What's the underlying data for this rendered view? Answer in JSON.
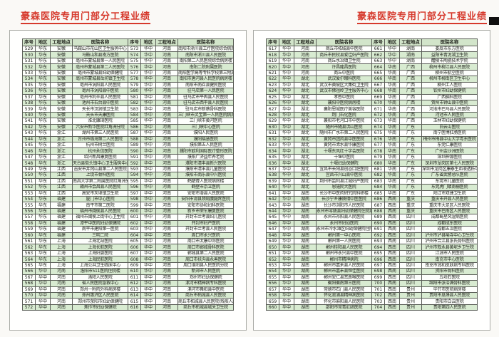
{
  "title": "豪森医院专用门部分工程业绩",
  "table_headers": [
    "序号",
    "地区",
    "工程地点",
    "医院名称",
    "序号",
    "地区",
    "工程地点",
    "医院名称"
  ],
  "pages": [
    {
      "rows": [
        [
          "529",
          "华东",
          "安徽",
          "马鞍山市花山区卫生服务中心",
          "573",
          "华中",
          "河南",
          "南阳市淅川县工疗医院综合病房楼"
        ],
        [
          "530",
          "华东",
          "安徽",
          "马鞍山和县南方医院",
          "574",
          "华中",
          "河南",
          "南阳市淅川县人民医院"
        ],
        [
          "531",
          "华东",
          "安徽",
          "亳州市蒙城县第一人民医院",
          "575",
          "华中",
          "河南",
          "南阳第二人民医院综合病房楼"
        ],
        [
          "532",
          "华东",
          "安徽",
          "亳州市蒙城县第二人民医院",
          "576",
          "华中",
          "河南",
          "南阳二院附属医院"
        ],
        [
          "533",
          "华东",
          "安徽",
          "亳州市蒙城县妇幼保健院",
          "577",
          "华中",
          "河南",
          "南阳医学高等专科学校第三附属医院"
        ],
        [
          "534",
          "华东",
          "安徽",
          "亳州市蒙城县岳坊镇卫生院",
          "578",
          "华中",
          "河南",
          "南阳市唐河县人民医院病房楼"
        ],
        [
          "535",
          "华东",
          "安徽",
          "亳州市涡阳县人民医院",
          "579",
          "华中",
          "河南",
          "南阳市南召县健民医院"
        ],
        [
          "536",
          "华东",
          "安徽",
          "亳州市涡阳县中医院",
          "580",
          "华中",
          "河南",
          "驻马店第一人民医院"
        ],
        [
          "537",
          "华东",
          "安徽",
          "亳州市利辛县人民医院",
          "581",
          "华中",
          "河南",
          "驻马店市平舆县人民医院"
        ],
        [
          "538",
          "华东",
          "安徽",
          "池州市石台县中医院",
          "582",
          "华中",
          "河南",
          "驻马店市西平县人民医院"
        ],
        [
          "539",
          "华东",
          "安徽",
          "天长市汊涧镇卫生院",
          "583",
          "华中",
          "河南",
          "驻马店市新蔡骨科医院"
        ],
        [
          "540",
          "华东",
          "安徽",
          "天长市天康医院",
          "584",
          "华中",
          "河南",
          "三门峡市灵宝第一人民医院病房楼"
        ],
        [
          "541",
          "华东",
          "安徽",
          "淮北康琦医院",
          "585",
          "华中",
          "河南",
          "三门峡市黄河医院"
        ],
        [
          "542",
          "华东",
          "安徽",
          "六安市新华医院红角洲分院",
          "586",
          "华中",
          "河南",
          "三门峡中心医院"
        ],
        [
          "543",
          "华东",
          "浙江",
          "湖州市第三人民医院",
          "587",
          "华中",
          "河南",
          "濮阳人民医院"
        ],
        [
          "544",
          "华东",
          "浙江",
          "台州市临海第二人民医院",
          "588",
          "华中",
          "河南",
          "濮阳福慧医院"
        ],
        [
          "545",
          "华东",
          "浙江",
          "杭州市树兰医院",
          "589",
          "华中",
          "河南",
          "濮阳第五人民医院"
        ],
        [
          "546",
          "华东",
          "浙江",
          "杭州永信医院",
          "590",
          "华中",
          "河南",
          "濮阳市欧利国际医疗整形医院"
        ],
        [
          "547",
          "华东",
          "浙江",
          "绍兴新昌康复医院",
          "591",
          "华中",
          "河南",
          "濮阳广济益年养老院"
        ],
        [
          "548",
          "华东",
          "浙江",
          "天台县街头镇中心卫生服务中心",
          "592",
          "华中",
          "河南",
          "濮阳市清丰县新兴医院"
        ],
        [
          "549",
          "华东",
          "江西",
          "吉安市井冈山县第二人民医院",
          "593",
          "华中",
          "河南",
          "濮阳市清丰县儿童医院"
        ],
        [
          "550",
          "华东",
          "江西",
          "上饶市骨科医院",
          "594",
          "华中",
          "河南",
          "濮阳市南乐县中兴医院"
        ],
        [
          "551",
          "华东",
          "江西",
          "南昌大学第二附属医院红角洲分院",
          "595",
          "华中",
          "河南",
          "鹤壁聋人医院病房楼"
        ],
        [
          "552",
          "华东",
          "江西",
          "赣州市会昌县人民医院",
          "596",
          "华中",
          "河南",
          "鹤壁市京立医院"
        ],
        [
          "553",
          "华东",
          "江西",
          "高安市灰埠镇卫生院",
          "597",
          "华中",
          "河南",
          "安阳市滑县人民医院"
        ],
        [
          "554",
          "华东",
          "福建",
          "厦门市中心医院",
          "598",
          "华中",
          "河南",
          "安阳市滑县颈肩腰腿疼医院"
        ],
        [
          "555",
          "华东",
          "福建",
          "南平市第二医院",
          "599",
          "华中",
          "河南",
          "安阳市协和妇科医院"
        ],
        [
          "556",
          "华东",
          "福建",
          "福州市闽侯县人民医院",
          "600",
          "华中",
          "河南",
          "新乡市荣军康复医院"
        ],
        [
          "557",
          "华东",
          "福建",
          "福州市闽侯上街中心卫生院",
          "601",
          "华中",
          "河南",
          "开封市兰考县妇儿医院"
        ],
        [
          "558",
          "华东",
          "福建",
          "漳平中医院妇幼保健院",
          "602",
          "华中",
          "河南",
          "开封市妇产医院"
        ],
        [
          "559",
          "华东",
          "福建",
          "南平市建阳第一医院",
          "603",
          "华中",
          "河南",
          "开封市兰考县人民医院"
        ],
        [
          "560",
          "华东",
          "福建",
          "三明二院",
          "604",
          "华中",
          "河南",
          "周口市永兴医院"
        ],
        [
          "561",
          "华东",
          "上海",
          "上海北站医院",
          "605",
          "华中",
          "河南",
          "周口市太康中郊医院"
        ],
        [
          "562",
          "华东",
          "上海",
          "上海长航医院",
          "606",
          "华中",
          "河南",
          "周口市郸城骨科医院"
        ],
        [
          "563",
          "华东",
          "上海",
          "上海妇婴医院",
          "607",
          "华中",
          "河南",
          "郸城县第二人民医院"
        ],
        [
          "564",
          "华东",
          "上海",
          "上海民航医院",
          "608",
          "华中",
          "河南",
          "周口市扶沟县永善医院"
        ],
        [
          "565",
          "华东",
          "上海",
          "上海公共卫生临床中心",
          "609",
          "华中",
          "河南",
          "周口淮阳县人民医院分院"
        ],
        [
          "566",
          "华中",
          "河南",
          "洛阳市511医院住院楼",
          "610",
          "华中",
          "河南",
          "新郑市人民医院"
        ],
        [
          "567",
          "华中",
          "河南",
          "洛阳人民医院",
          "611",
          "华中",
          "河南",
          "郑州市妇幼保健院"
        ],
        [
          "568",
          "华中",
          "河南",
          "省人民医院急救中心",
          "612",
          "华中",
          "河南",
          "漯河市精神病专科医院"
        ],
        [
          "569",
          "华中",
          "河南",
          "郑州一附院外科病房楼",
          "613",
          "华中",
          "河南",
          "漯河市舞阳县中医院"
        ],
        [
          "570",
          "华中",
          "河南",
          "郑州惠济区人民医院",
          "614",
          "华中",
          "河南",
          "商丘市柘城县人民医院"
        ],
        [
          "571",
          "华中",
          "河南",
          "郑州市荥阳市妇幼保健院",
          "615",
          "华中",
          "河南",
          "商丘市柘城县人民医院(残疾人康复中心)"
        ],
        [
          "572",
          "华中",
          "河南",
          "焦作市妇幼保健院",
          "616",
          "华中",
          "河南",
          "商丘市柘城县城关卫生院"
        ]
      ]
    },
    {
      "rows": [
        [
          "617",
          "华中",
          "河南",
          "商丘市柘城县中医院",
          "661",
          "华中",
          "湖南",
          "娄底市东方医院"
        ],
        [
          "618",
          "华中",
          "河南",
          "商丘市民权县爱佳妇产医院",
          "662",
          "华中",
          "湖南",
          "益阳市青泥湖卫生院"
        ],
        [
          "619",
          "华中",
          "河南",
          "商丘水冶镇卫生院",
          "663",
          "华中",
          "湖南",
          "醴陵市陶瓷技术学院"
        ],
        [
          "620",
          "华中",
          "河南",
          "许昌隆昌医院",
          "664",
          "华南",
          "广西",
          "柳州市柳江县人民医院"
        ],
        [
          "621",
          "华中",
          "河南",
          "商丘中医院",
          "665",
          "华南",
          "广西",
          "柳州市航空医院"
        ],
        [
          "622",
          "华中",
          "湖北",
          "武汉爱尔眼科医院",
          "666",
          "华南",
          "广西",
          "柳州市柳南区卫生中心"
        ],
        [
          "623",
          "华中",
          "湖北",
          "武汉市黄陂区大集街卫生院",
          "667",
          "华南",
          "广西",
          "柳州工人医院"
        ],
        [
          "624",
          "华中",
          "湖北",
          "武汉市佛祖岭卫生服务中心",
          "668",
          "华南",
          "广西",
          "钦州市妇幼保健院"
        ],
        [
          "625",
          "华中",
          "湖北",
          "孝感中医院",
          "669",
          "华南",
          "广西",
          "广西脑科医院"
        ],
        [
          "626",
          "华中",
          "湖北",
          "襄阳中医院病房楼",
          "670",
          "华南",
          "广西",
          "贺州市钟山县中医院"
        ],
        [
          "627",
          "华中",
          "湖北",
          "襄阳恩城医疗美容医院",
          "671",
          "华南",
          "广西",
          "河池市巴马县人民医院"
        ],
        [
          "628",
          "华中",
          "湖北",
          "荆门石化医院",
          "672",
          "华南",
          "广西",
          "河池市人民医院"
        ],
        [
          "629",
          "华中",
          "湖北",
          "襄阳市老河口市中医院",
          "673",
          "华南",
          "广西",
          "玉林市妇幼保健院"
        ],
        [
          "630",
          "华中",
          "湖北",
          "随州市随县洪山医院",
          "674",
          "华南",
          "广东",
          "白云山医院"
        ],
        [
          "631",
          "华中",
          "湖北",
          "随州市广水市第二人民医院",
          "675",
          "华南",
          "广东",
          "南宁医博肛肠医院"
        ],
        [
          "632",
          "华中",
          "湖北",
          "黄冈市团风县中医医院",
          "676",
          "华南",
          "广东",
          "梅州市梅县中山大学粤东医院"
        ],
        [
          "633",
          "华中",
          "湖北",
          "黄冈市浠水县华康医院",
          "677",
          "华南",
          "广东",
          "东莞仁康医院"
        ],
        [
          "634",
          "华中",
          "湖北",
          "十堰东风红十字会医院",
          "678",
          "华南",
          "广东",
          "广州金沙洲医院"
        ],
        [
          "635",
          "华中",
          "湖北",
          "十堰中医院",
          "679",
          "华南",
          "广东",
          "深圳神源医院"
        ],
        [
          "636",
          "华中",
          "湖北",
          "十堰妇幼保健院",
          "680",
          "华南",
          "广东",
          "深圳市龙岗区第七人民医院"
        ],
        [
          "637",
          "华中",
          "湖北",
          "宜昌市长阳县创谷口腔医院",
          "681",
          "华南",
          "广东",
          "深圳市龙岗区康泰生血液透析中心"
        ],
        [
          "638",
          "华中",
          "湖北",
          "宜昌市兴山县中医院",
          "682",
          "华南",
          "广东",
          "广东省武警总队医院"
        ],
        [
          "639",
          "华中",
          "湖北",
          "荆州市监利县江城妇产医院",
          "683",
          "华南",
          "广东",
          "东莞市儿童医院"
        ],
        [
          "640",
          "华中",
          "湖北",
          "恩施民大医院",
          "684",
          "华南",
          "广东",
          "东莞虎门镇南栅医院"
        ],
        [
          "641",
          "华中",
          "湖南",
          "长沙市中医药研究院科研楼",
          "685",
          "华南",
          "广东",
          "阳江市双捷卫生院"
        ],
        [
          "642",
          "华中",
          "湖南",
          "长沙宁乡康陵镇中医医院",
          "686",
          "西南",
          "重庆",
          "重庆市开县人民医院"
        ],
        [
          "643",
          "华中",
          "湖南",
          "长沙市浏阳市人民医院",
          "687",
          "西南",
          "重庆",
          "重庆市大足区人民医院"
        ],
        [
          "644",
          "华中",
          "湖南",
          "永州市零陵县妇幼保健院住院病房楼",
          "688",
          "西南",
          "重庆",
          "重庆市巴南区人民医院"
        ],
        [
          "645",
          "华中",
          "湖南",
          "永州市祁阳县人民医院",
          "689",
          "西南",
          "四川",
          "成都蜀星风湿病医院"
        ],
        [
          "646",
          "华中",
          "湖南",
          "永州市妇幼医院",
          "690",
          "西南",
          "四川",
          "成都成东医院"
        ],
        [
          "647",
          "华中",
          "湖南",
          "永州市冷水滩区妇幼保健院住院病房楼",
          "691",
          "西南",
          "四川",
          "成都五冶医院"
        ],
        [
          "648",
          "华中",
          "湖南",
          "郴州第一中心医院",
          "692",
          "西南",
          "四川",
          "泸州市泸县喻寺中心卫生院"
        ],
        [
          "649",
          "华中",
          "湖南",
          "郴州第一人民医院",
          "693",
          "西南",
          "四川",
          "泸州市合江县张氏骨科医院"
        ],
        [
          "650",
          "华中",
          "湖南",
          "郴州桂阳县人民医院",
          "694",
          "西南",
          "四川",
          "泸州市叙永县黄坭乡卫生院"
        ],
        [
          "651",
          "华中",
          "湖南",
          "郴州市永兴县中医院",
          "695",
          "西南",
          "四川",
          "江油市人民医院"
        ],
        [
          "652",
          "华中",
          "湖南",
          "郴州市精神病院",
          "696",
          "西南",
          "四川",
          "南充市中心医院"
        ],
        [
          "653",
          "华中",
          "湖南",
          "郴州市嘉禾县人民医院",
          "697",
          "西南",
          "四川",
          "南充市润和皮肤病专科医院"
        ],
        [
          "654",
          "华中",
          "湖南",
          "郴州市嘉禾县恒佳医院",
          "698",
          "西南",
          "四川",
          "资阳市骨科医院"
        ],
        [
          "655",
          "华中",
          "湖南",
          "郴州安仁县耳鼻喉医院",
          "699",
          "西南",
          "四川",
          "五块石医院"
        ],
        [
          "656",
          "华中",
          "湖南",
          "衡阳衡南第三医院",
          "700",
          "西南",
          "四川",
          "绵阳市张治满骨科医院"
        ],
        [
          "657",
          "华中",
          "湖南",
          "常德市石门县人民医院",
          "701",
          "西南",
          "贵州",
          "毕节市医院病房楼"
        ],
        [
          "658",
          "华中",
          "湖南",
          "怀化溆浦县精神病医院",
          "702",
          "西南",
          "贵州",
          "贵阳市息烽县人民医院"
        ],
        [
          "659",
          "华中",
          "湖南",
          "怀化市麻阳县人民医院",
          "703",
          "西南",
          "贵州",
          "贵阳市白云医院"
        ],
        [
          "660",
          "华中",
          "湖南",
          "邵阳市常青肛肠医院",
          "704",
          "西南",
          "贵州",
          "贵阳第四人民医院"
        ]
      ]
    }
  ],
  "colors": {
    "title_red": "#d6392c",
    "stripe_green": "#d8ebd1",
    "header_green": "#d2e5ca"
  }
}
